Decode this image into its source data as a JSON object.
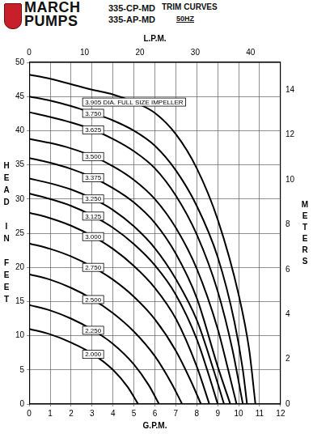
{
  "header": {
    "brand": [
      "MARCH",
      "PUMPS"
    ],
    "models": [
      "335-CP-MD",
      "335-AP-MD"
    ]
  },
  "chart_data": {
    "type": "line",
    "title": "TRIM CURVES",
    "subtitle": "50HZ",
    "x_label": "G.P.M.",
    "x2_label": "L.P.M.",
    "y_label": "HEAD IN FEET",
    "y2_label": "METERS",
    "xlim": [
      0,
      12
    ],
    "xticks": [
      0,
      1,
      2,
      3,
      4,
      5,
      6,
      7,
      8,
      9,
      10,
      11,
      12
    ],
    "x2lim": [
      0,
      45.42
    ],
    "x2ticks": [
      0,
      10,
      20,
      30,
      40
    ],
    "ylim": [
      0,
      50
    ],
    "yticks": [
      0,
      5,
      10,
      15,
      20,
      25,
      30,
      35,
      40,
      45,
      50
    ],
    "y2lim": [
      0,
      15.24
    ],
    "y2ticks": [
      0,
      2,
      4,
      6,
      8,
      10,
      12,
      14
    ],
    "grid": true,
    "line_style": "solid",
    "series": [
      {
        "name": "3.905 DIA. FULL SIZE IMPELLER",
        "color": "#000000",
        "x": [
          0,
          1,
          2,
          3,
          4,
          5,
          6,
          7,
          8,
          9,
          10,
          10.5,
          10.8
        ],
        "values": [
          48.2,
          47.6,
          46.8,
          46,
          45.3,
          44.2,
          42.6,
          39.5,
          34.5,
          27,
          16,
          8,
          0
        ]
      },
      {
        "name": "3.750",
        "color": "#000000",
        "x": [
          0,
          1,
          2,
          3,
          4,
          5,
          6,
          7,
          8,
          9,
          9.8,
          10.2,
          10.4
        ],
        "values": [
          45,
          44.4,
          43.6,
          42.6,
          41.5,
          40,
          37.8,
          34.2,
          29,
          21.5,
          12,
          5,
          0
        ]
      },
      {
        "name": "3.625",
        "color": "#000000",
        "x": [
          0,
          1,
          2,
          3,
          4,
          5,
          6,
          7,
          8,
          9,
          9.7,
          10.2
        ],
        "values": [
          42.7,
          42,
          41.2,
          40.2,
          38.8,
          37,
          34.5,
          30.5,
          24.8,
          16.5,
          8,
          0
        ]
      },
      {
        "name": "3.500",
        "color": "#000000",
        "x": [
          0,
          1,
          2,
          3,
          4,
          5,
          6,
          7,
          8,
          9,
          9.5,
          9.9
        ],
        "values": [
          38.8,
          38.2,
          37.4,
          36.3,
          34.8,
          32.8,
          30,
          25.8,
          19.8,
          11,
          5,
          0
        ]
      },
      {
        "name": "3.375",
        "color": "#000000",
        "x": [
          0,
          1,
          2,
          3,
          4,
          5,
          6,
          7,
          8,
          9,
          9.6
        ],
        "values": [
          36,
          35.3,
          34.4,
          33.2,
          31.6,
          29.5,
          26.5,
          22,
          15.5,
          5.5,
          0
        ]
      },
      {
        "name": "3.250",
        "color": "#000000",
        "x": [
          0,
          1,
          2,
          3,
          4,
          5,
          6,
          7,
          8,
          8.8,
          9.3
        ],
        "values": [
          33,
          32.3,
          31.4,
          30.1,
          28.4,
          26,
          22.8,
          18.3,
          12.3,
          5,
          0
        ]
      },
      {
        "name": "3.125",
        "color": "#000000",
        "x": [
          0,
          1,
          2,
          3,
          4,
          5,
          6,
          7,
          8,
          8.6,
          9
        ],
        "values": [
          30.8,
          30,
          29,
          27.6,
          25.8,
          23.4,
          20.3,
          16,
          9.5,
          4,
          0
        ]
      },
      {
        "name": "3.000",
        "color": "#000000",
        "x": [
          0,
          1,
          2,
          3,
          4,
          5,
          6,
          7,
          8,
          8.6
        ],
        "values": [
          28,
          27.2,
          26.1,
          24.6,
          22.7,
          20.2,
          17,
          12.5,
          5.5,
          0
        ]
      },
      {
        "name": "2.750",
        "color": "#000000",
        "x": [
          0,
          1,
          2,
          3,
          4,
          5,
          6,
          7,
          7.7,
          8.2
        ],
        "values": [
          23.5,
          22.7,
          21.6,
          20.1,
          18.2,
          15.7,
          12.4,
          7.8,
          3.5,
          0
        ]
      },
      {
        "name": "2.500",
        "color": "#000000",
        "x": [
          0,
          1,
          2,
          3,
          4,
          5,
          6,
          6.8,
          7.3
        ],
        "values": [
          19,
          18.2,
          17,
          15.4,
          13.3,
          10.6,
          7,
          3,
          0
        ]
      },
      {
        "name": "2.250",
        "color": "#000000",
        "x": [
          0,
          1,
          2,
          3,
          4,
          5,
          5.7,
          6.2
        ],
        "values": [
          14.5,
          13.7,
          12.5,
          10.9,
          8.8,
          5.8,
          2.8,
          0
        ]
      },
      {
        "name": "2.000",
        "color": "#000000",
        "x": [
          0,
          1,
          2,
          3,
          4,
          4.7,
          5.2
        ],
        "values": [
          11,
          10.2,
          9,
          7.4,
          5,
          2.5,
          0
        ]
      }
    ]
  }
}
